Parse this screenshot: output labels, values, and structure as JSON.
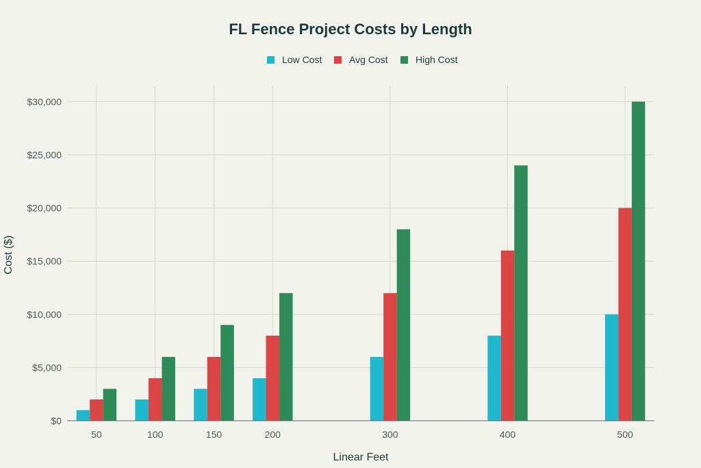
{
  "chart_data": {
    "type": "bar",
    "title": "FL Fence Project Costs by Length",
    "xlabel": "Linear Feet",
    "ylabel": "Cost ($)",
    "x": [
      50,
      100,
      150,
      200,
      300,
      400,
      500
    ],
    "xlim": [
      25,
      525
    ],
    "ylim": [
      0,
      31500
    ],
    "yticks": [
      0,
      5000,
      10000,
      15000,
      20000,
      25000,
      30000
    ],
    "ytick_labels": [
      "$0",
      "$5,000",
      "$10,000",
      "$15,000",
      "$20,000",
      "$25,000",
      "$30,000"
    ],
    "grid": true,
    "legend_position": "top-center",
    "series": [
      {
        "name": "Low Cost",
        "color": "#1fb8cd",
        "values": [
          1000,
          2000,
          3000,
          4000,
          6000,
          8000,
          10000
        ]
      },
      {
        "name": "Avg Cost",
        "color": "#db4545",
        "values": [
          2000,
          4000,
          6000,
          8000,
          12000,
          16000,
          20000
        ]
      },
      {
        "name": "High Cost",
        "color": "#2e8b57",
        "values": [
          3000,
          6000,
          9000,
          12000,
          18000,
          24000,
          30000
        ]
      }
    ]
  }
}
